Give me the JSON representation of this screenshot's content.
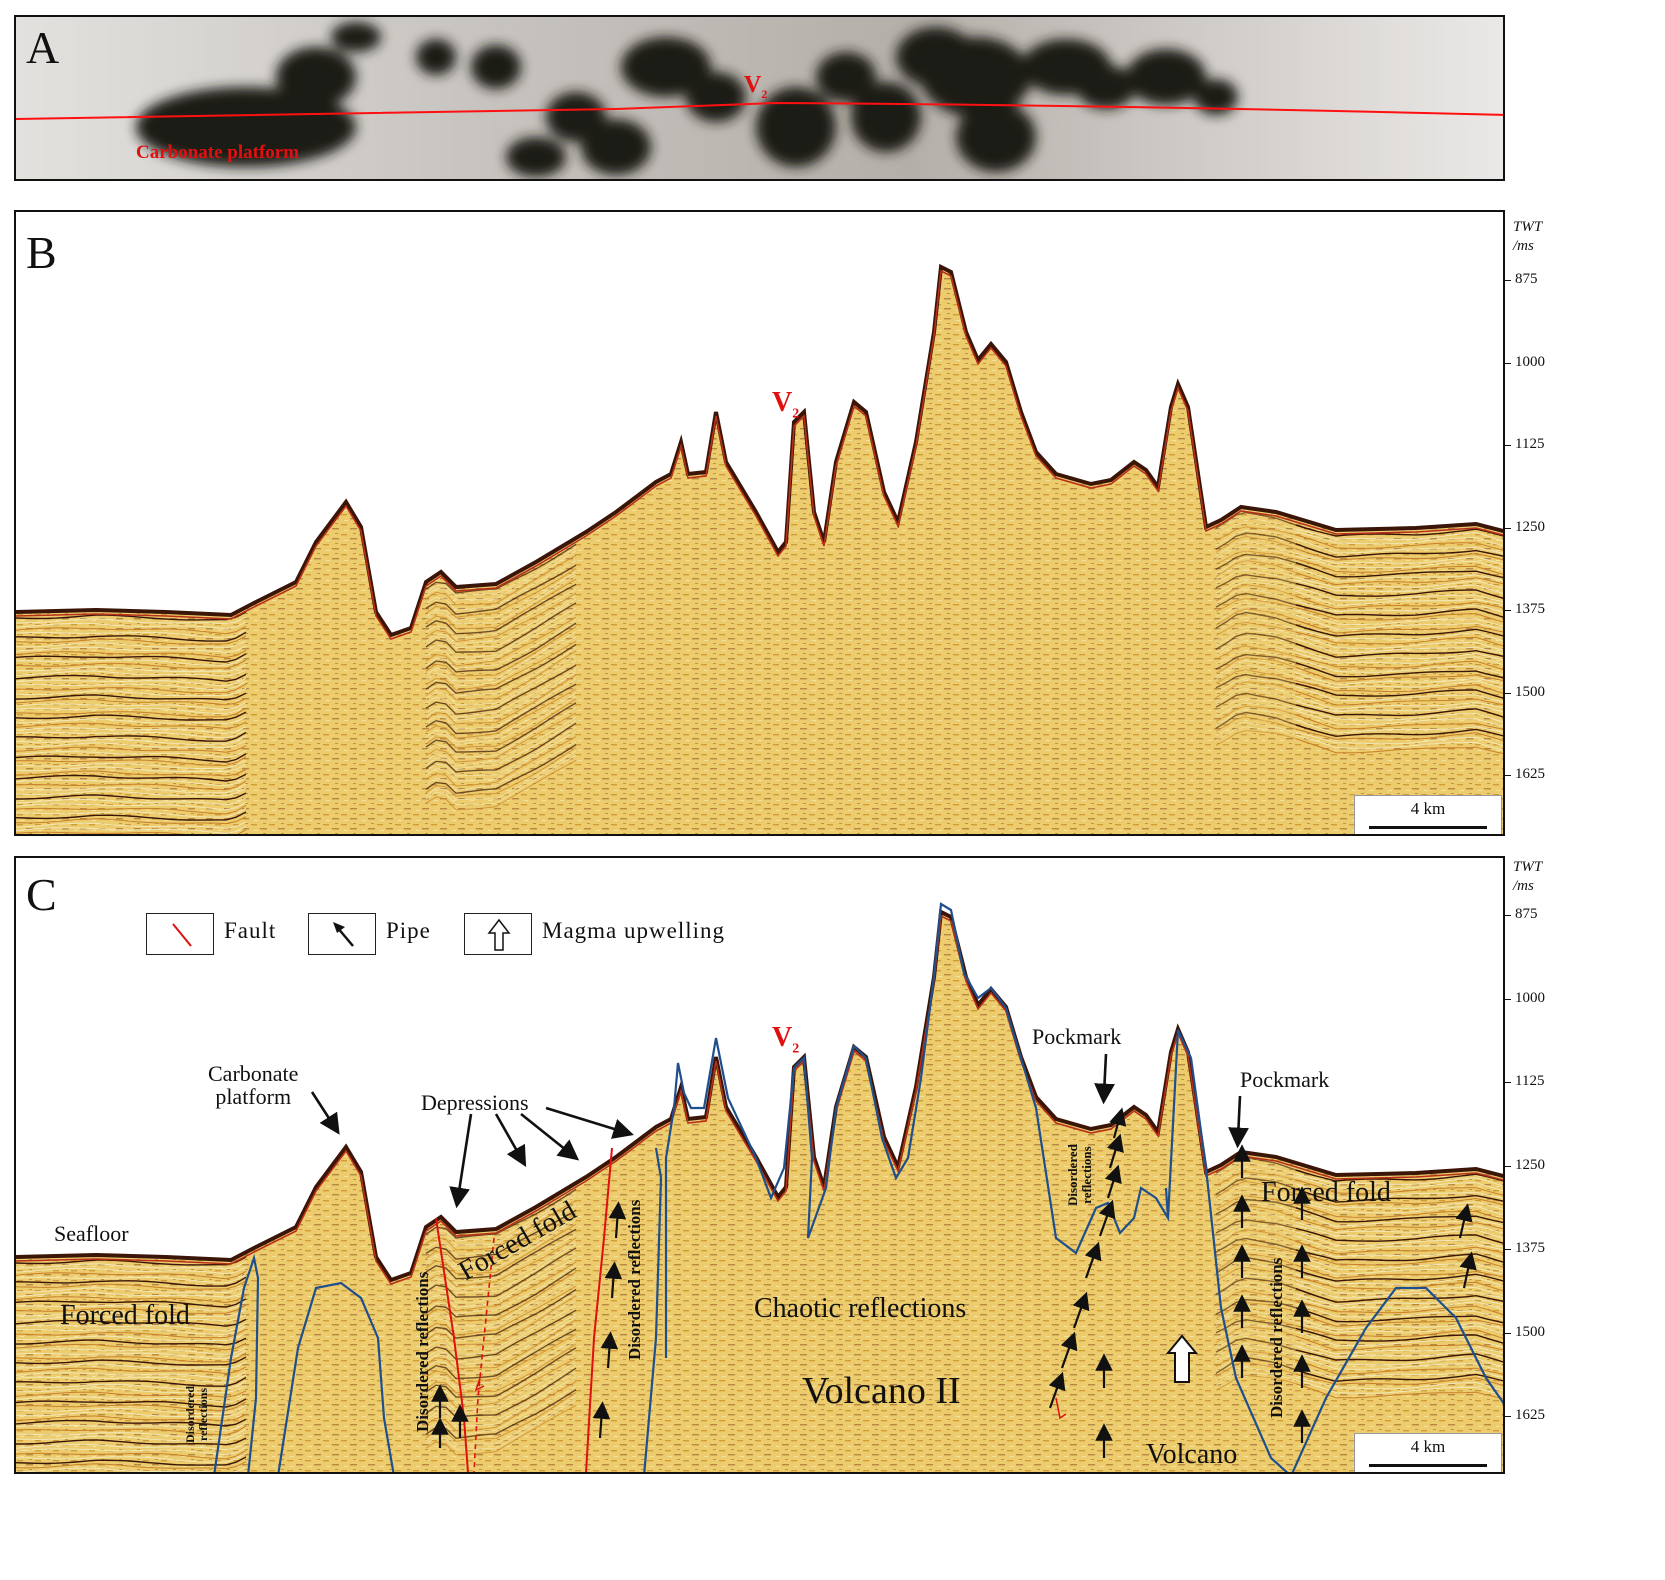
{
  "panels": {
    "a": {
      "letter": "A",
      "v_label": "V",
      "v_sub": "2",
      "platform_label": "Carbonate platform"
    },
    "b": {
      "letter": "B",
      "v_label": "V",
      "v_sub": "2"
    },
    "c": {
      "letter": "C",
      "v_label": "V",
      "v_sub": "2"
    }
  },
  "axis": {
    "title_line1": "TWT",
    "title_line2": "/ms",
    "ticks": [
      "875",
      "1000",
      "1125",
      "1250",
      "1375",
      "1500",
      "1625"
    ]
  },
  "scale_bar": {
    "label": "4 km"
  },
  "legend": {
    "fault": "Fault",
    "pipe": "Pipe",
    "magma": "Magma  upwelling"
  },
  "annotations": {
    "seafloor": "Seafloor",
    "forced_fold_left": "Forced fold",
    "forced_fold_mid": "Forced fold",
    "forced_fold_right": "Forced fold",
    "carbonate_line1": "Carbonate",
    "carbonate_line2": "platform",
    "depressions": "Depressions",
    "pockmark_1": "Pockmark",
    "pockmark_2": "Pockmark",
    "chaotic": "Chaotic reflections",
    "volcano_ii": "Volcano II",
    "volcano": "Volcano",
    "disordered_small_1": "Disordered",
    "disordered_small_2": "reflections",
    "disordered_1": "Disordered reflections",
    "disordered_2": "Disordered reflections",
    "disordered_3": "Disordered reflections",
    "disordered_upper_1": "Disordered",
    "disordered_upper_2": "reflections"
  },
  "colors": {
    "seismic_bg": "#eccc6c",
    "reflector_dark": "#3a1508",
    "reflector_red": "#b8301a",
    "outline_blue": "#1f4f8c",
    "fault_red": "#e01010",
    "line_red": "#ff1010"
  }
}
